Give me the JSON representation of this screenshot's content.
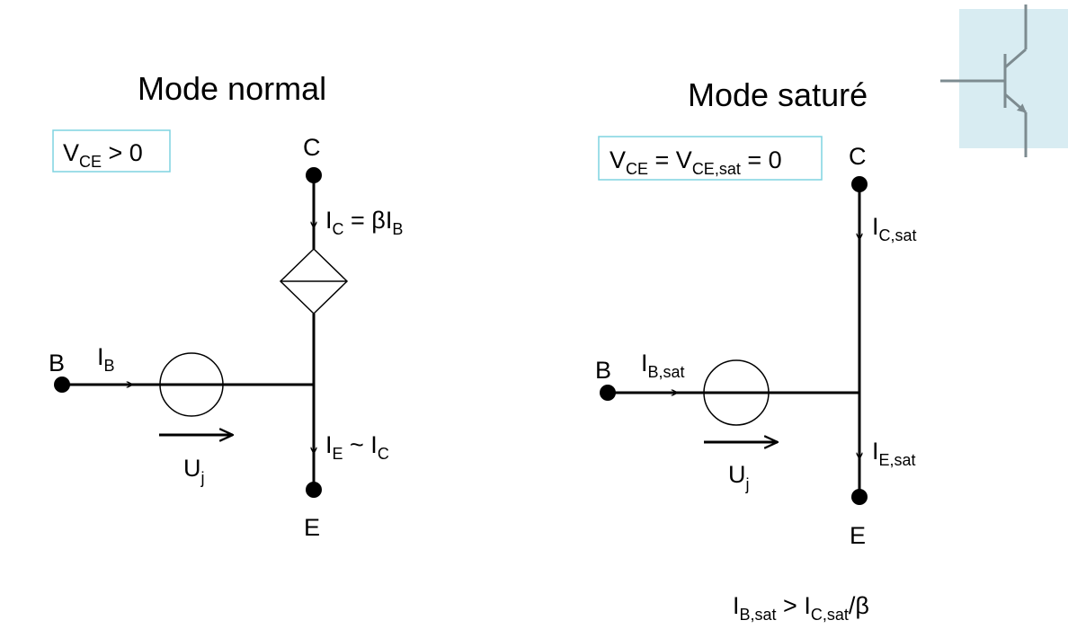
{
  "left": {
    "title": "Mode normal",
    "condition": {
      "main": "V",
      "sub": "CE",
      "rest": " > 0"
    },
    "node_c": "C",
    "node_b": "B",
    "node_e": "E",
    "ic_label": {
      "a": "I",
      "a_sub": "C",
      "b": " = βI",
      "b_sub": "B"
    },
    "ib_label": {
      "a": "I",
      "a_sub": "B"
    },
    "ie_label": {
      "a": "I",
      "a_sub": "E",
      "b": " ~ I",
      "b_sub": "C"
    },
    "uj_label": {
      "a": "U",
      "a_sub": "j"
    }
  },
  "right": {
    "title": "Mode saturé",
    "condition": {
      "a": "V",
      "a_sub": "CE",
      "b": " = V",
      "b_sub": "CE,sat",
      "c": " = 0"
    },
    "node_c": "C",
    "node_b": "B",
    "node_e": "E",
    "ic_label": {
      "a": "I",
      "a_sub": "C,sat"
    },
    "ib_label": {
      "a": "I",
      "a_sub": "B,sat"
    },
    "ie_label": {
      "a": "I",
      "a_sub": "E,sat"
    },
    "uj_label": {
      "a": "U",
      "a_sub": "j"
    },
    "relation": {
      "a": "I",
      "a_sub": "B,sat",
      "b": " > I",
      "b_sub": "C,sat",
      "c": "/β"
    }
  },
  "colors": {
    "box_border": "#7fd3e0",
    "icon_bg": "#d8ecf2",
    "icon_line": "#7d8b90"
  },
  "icons": [
    "transistor-symbol-icon"
  ]
}
